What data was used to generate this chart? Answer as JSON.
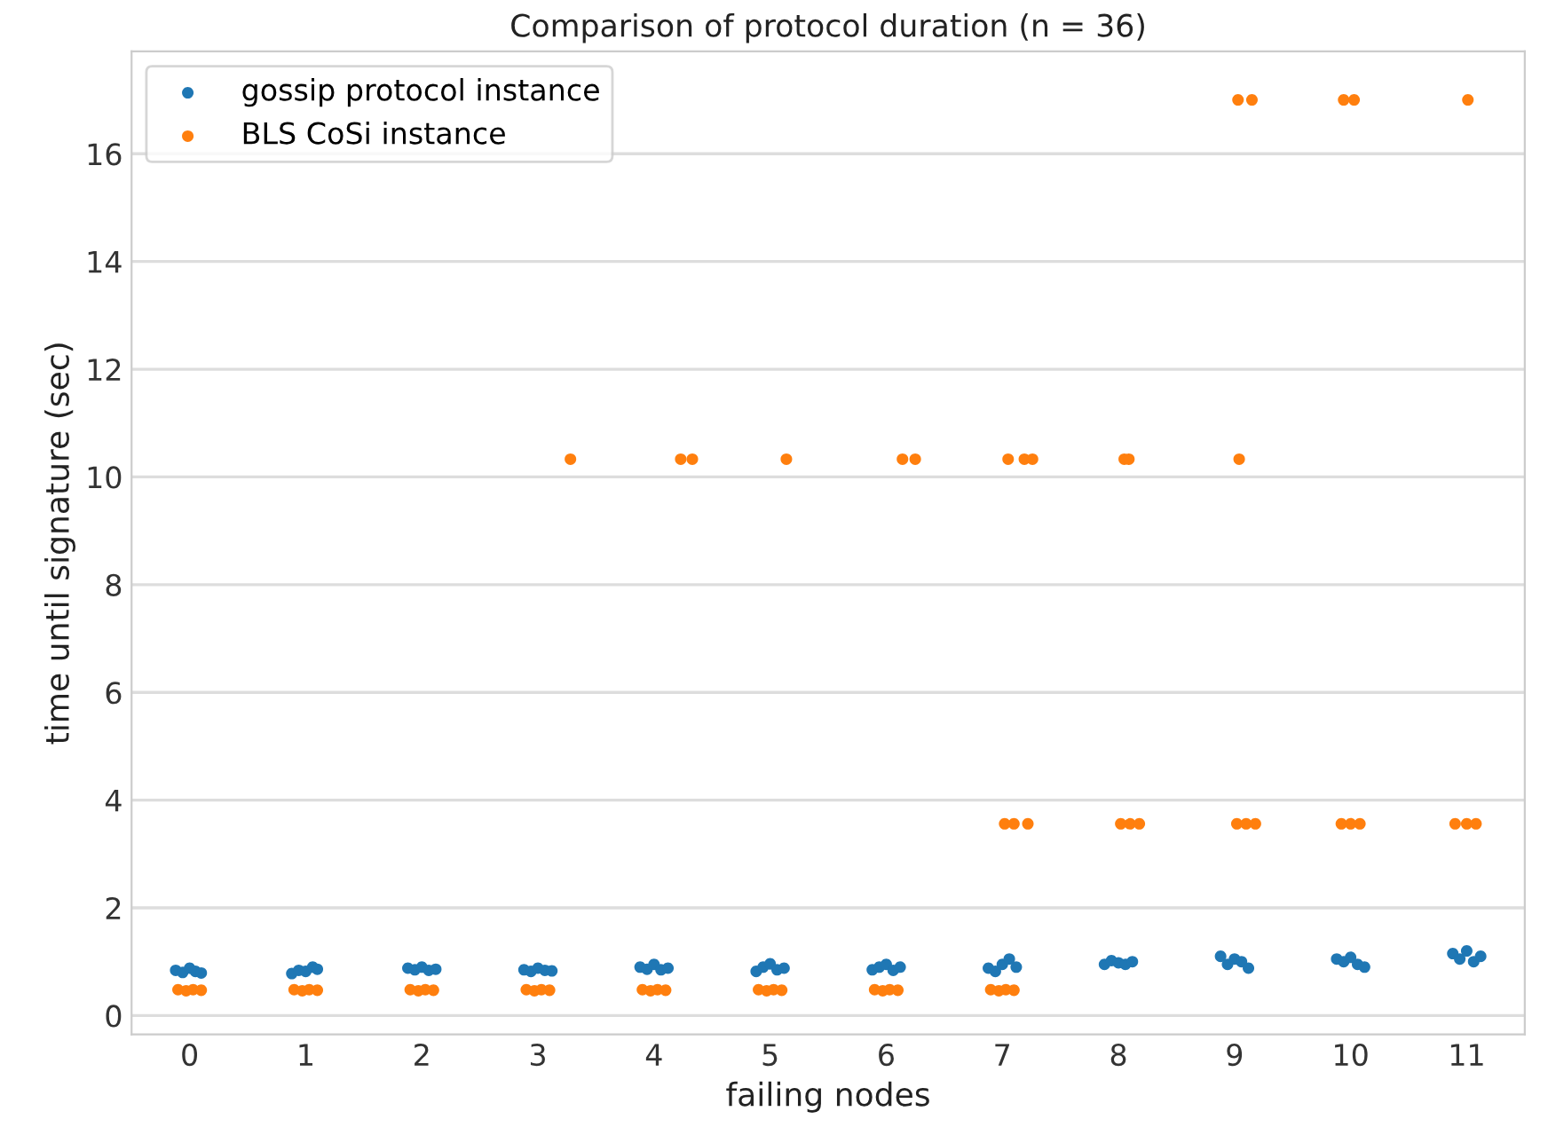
{
  "chart_data": {
    "type": "scatter",
    "title": "Comparison of protocol duration (n = 36)",
    "xlabel": "failing nodes",
    "ylabel": "time until signature (sec)",
    "xlim": [
      -0.5,
      11.5
    ],
    "xticks": [
      0,
      1,
      2,
      3,
      4,
      5,
      6,
      7,
      8,
      9,
      10,
      11
    ],
    "ylim": [
      -0.35,
      17.9
    ],
    "yticks": [
      0,
      2,
      4,
      6,
      8,
      10,
      12,
      14,
      16
    ],
    "grid": "y",
    "legend": "top left",
    "marker": "circle",
    "series": [
      {
        "name": "gossip protocol instance",
        "color": "#1f77b4",
        "x": [
          -0.12,
          -0.06,
          0,
          0.05,
          0.1,
          0.88,
          0.94,
          1,
          1.06,
          1.1,
          1.88,
          1.94,
          2,
          2.06,
          2.12,
          2.88,
          2.94,
          3,
          3.06,
          3.12,
          3.88,
          3.94,
          4,
          4.06,
          4.12,
          4.88,
          4.94,
          5,
          5.06,
          5.12,
          5.88,
          5.94,
          6,
          6.06,
          6.12,
          6.88,
          6.94,
          7,
          7.06,
          7.12,
          7.88,
          7.94,
          8,
          8.06,
          8.12,
          8.88,
          8.94,
          9,
          9.06,
          9.12,
          9.88,
          9.94,
          10,
          10.06,
          10.12,
          10.88,
          10.94,
          11,
          11.06,
          11.12
        ],
        "values": [
          0.84,
          0.8,
          0.88,
          0.82,
          0.79,
          0.78,
          0.84,
          0.82,
          0.9,
          0.86,
          0.88,
          0.85,
          0.9,
          0.84,
          0.86,
          0.85,
          0.82,
          0.88,
          0.84,
          0.83,
          0.9,
          0.86,
          0.95,
          0.85,
          0.88,
          0.82,
          0.9,
          0.96,
          0.85,
          0.88,
          0.85,
          0.9,
          0.95,
          0.84,
          0.9,
          0.88,
          0.82,
          0.95,
          1.05,
          0.9,
          0.95,
          1.02,
          0.98,
          0.95,
          1.0,
          1.1,
          0.95,
          1.05,
          1.0,
          0.88,
          1.05,
          1.0,
          1.08,
          0.95,
          0.9,
          1.15,
          1.05,
          1.2,
          1.0,
          1.1
        ]
      },
      {
        "name": "BLS CoSi instance",
        "color": "#ff7f0e",
        "x": [
          -0.1,
          -0.03,
          0.03,
          0.1,
          0.9,
          0.97,
          1.03,
          1.1,
          1.9,
          1.97,
          2.03,
          2.1,
          2.9,
          2.97,
          3.03,
          3.1,
          3.28,
          3.9,
          3.97,
          4.03,
          4.1,
          4.23,
          4.33,
          4.9,
          4.97,
          5.03,
          5.1,
          5.14,
          5.9,
          5.97,
          6.03,
          6.1,
          6.14,
          6.25,
          6.9,
          6.97,
          7.03,
          7.1,
          7.05,
          7.19,
          7.26,
          7.02,
          7.1,
          7.22,
          8.02,
          8.1,
          8.18,
          9.02,
          9.1,
          9.18,
          9.92,
          10,
          10.08,
          10.9,
          11,
          11.08,
          8.05,
          8.09,
          9.04,
          9.03,
          9.15,
          9.94,
          10.03,
          11.01
        ],
        "values": [
          0.48,
          0.46,
          0.48,
          0.47,
          0.48,
          0.46,
          0.48,
          0.47,
          0.48,
          0.46,
          0.48,
          0.47,
          0.48,
          0.46,
          0.48,
          0.47,
          10.33,
          0.48,
          0.46,
          0.48,
          0.47,
          10.33,
          10.33,
          0.48,
          0.46,
          0.48,
          0.47,
          10.33,
          0.48,
          0.46,
          0.48,
          0.47,
          10.33,
          10.33,
          0.48,
          0.46,
          0.48,
          0.47,
          10.33,
          10.33,
          10.33,
          3.56,
          3.56,
          3.56,
          3.56,
          3.56,
          3.56,
          3.56,
          3.56,
          3.56,
          3.56,
          3.56,
          3.56,
          3.56,
          3.56,
          3.56,
          10.33,
          10.33,
          10.33,
          17.0,
          17.0,
          17.0,
          17.0,
          17.0
        ]
      }
    ]
  }
}
